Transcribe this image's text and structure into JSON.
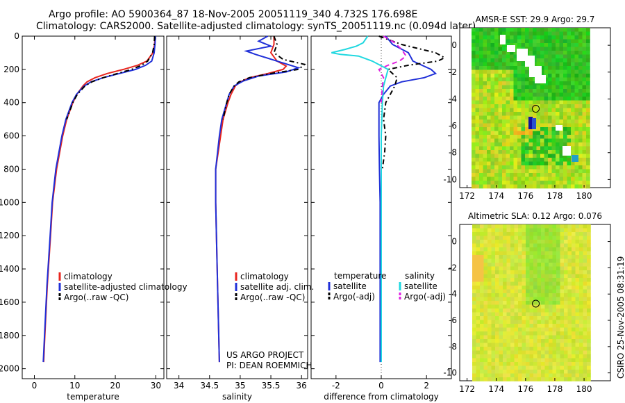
{
  "header": {
    "line1": "Argo profile: AO 5900364_87 18-Nov-2005 20051119_340 4.732S 176.698E",
    "line2": "Climatology: CARS2000. Satellite-adjusted climatology: synTS_20051119.nc (0.094d later)"
  },
  "chart_data": [
    {
      "type": "line",
      "id": "temperature",
      "xlabel": "temperature",
      "xlim": [
        -3,
        32
      ],
      "ylim": [
        2060,
        0
      ],
      "xticks": [
        0,
        10,
        20,
        30
      ],
      "xtick_labels": [
        "0",
        "10",
        "20",
        "30"
      ],
      "yticks": [
        0,
        200,
        400,
        600,
        800,
        1000,
        1200,
        1400,
        1600,
        1800,
        2000
      ],
      "ytick_labels": [
        "0",
        "200",
        "400",
        "600",
        "800",
        "1000",
        "1200",
        "1400",
        "1600",
        "1800",
        "2000"
      ],
      "legend": [
        "climatology",
        "satellite-adjusted climatology",
        "Argo(..raw -QC)"
      ],
      "series": [
        {
          "name": "climatology",
          "color": "#e8261f",
          "dash": "",
          "depth": [
            0,
            50,
            100,
            150,
            175,
            200,
            225,
            250,
            275,
            300,
            350,
            400,
            500,
            600,
            800,
            1000,
            1200,
            1500,
            1800,
            1960
          ],
          "values": [
            29.8,
            29.7,
            29.3,
            27.8,
            25.5,
            22,
            18,
            15,
            13,
            12,
            10.5,
            9.5,
            8,
            7,
            5.5,
            4.5,
            4,
            3.2,
            2.6,
            2.3
          ]
        },
        {
          "name": "satellite-adjusted climatology",
          "color": "#2030d8",
          "dash": "",
          "depth": [
            0,
            50,
            100,
            150,
            175,
            200,
            225,
            250,
            275,
            300,
            350,
            400,
            500,
            600,
            800,
            1000,
            1200,
            1500,
            1800,
            1960
          ],
          "values": [
            29.9,
            29.8,
            29.6,
            29,
            27.5,
            25,
            21,
            17,
            14,
            12.3,
            10.4,
            9.3,
            7.8,
            6.8,
            5.3,
            4.4,
            3.9,
            3.1,
            2.5,
            2.2
          ]
        },
        {
          "name": "Argo(..raw -QC)",
          "color": "#000000",
          "dash": "7,4,2,4",
          "depth": [
            0,
            50,
            100,
            150,
            175,
            200,
            225,
            250,
            275,
            300,
            350,
            400,
            500
          ],
          "values": [
            29.7,
            29.6,
            29.2,
            28,
            26.5,
            24,
            20.5,
            17,
            14.2,
            12.5,
            10.6,
            9.5,
            8
          ]
        }
      ]
    },
    {
      "type": "line",
      "id": "salinity",
      "xlabel": "salinity",
      "xlim": [
        33.8,
        36.1
      ],
      "ylim": [
        2060,
        0
      ],
      "xticks": [
        34,
        34.5,
        35,
        35.5,
        36
      ],
      "xtick_labels": [
        "34",
        "34.5",
        "35",
        "35.5",
        "36"
      ],
      "legend": [
        "climatology",
        "satellite adj. clim.",
        "Argo(..raw -QC)"
      ],
      "series": [
        {
          "name": "climatology",
          "color": "#e8261f",
          "dash": "",
          "depth": [
            0,
            50,
            100,
            150,
            180,
            200,
            225,
            250,
            275,
            300,
            350,
            400,
            500,
            600,
            800,
            1000,
            1500,
            1960
          ],
          "values": [
            35.55,
            35.55,
            35.5,
            35.6,
            35.75,
            35.7,
            35.45,
            35.15,
            35.0,
            34.92,
            34.85,
            34.8,
            34.72,
            34.68,
            34.6,
            34.6,
            34.63,
            34.66
          ]
        },
        {
          "name": "satellite adj. clim.",
          "color": "#2030d8",
          "dash": "",
          "depth": [
            0,
            30,
            60,
            90,
            110,
            150,
            190,
            215,
            240,
            270,
            300,
            350,
            400,
            500,
            600,
            800,
            1000,
            1500,
            1960
          ],
          "values": [
            35.45,
            35.3,
            35.5,
            35.1,
            35.25,
            35.6,
            35.95,
            35.75,
            35.3,
            35.05,
            34.9,
            34.82,
            34.78,
            34.7,
            34.66,
            34.6,
            34.6,
            34.63,
            34.66
          ]
        },
        {
          "name": "Argo(..raw -QC)",
          "color": "#000000",
          "dash": "7,4,2,4",
          "depth": [
            0,
            50,
            100,
            140,
            170,
            200,
            225,
            250,
            275,
            300,
            350,
            400,
            500
          ],
          "values": [
            35.55,
            35.6,
            35.55,
            35.7,
            36.05,
            35.95,
            35.5,
            35.15,
            34.98,
            34.9,
            34.82,
            34.78,
            34.72
          ]
        }
      ],
      "annotation": [
        "US ARGO PROJECT",
        "PI: DEAN ROEMMICH"
      ]
    },
    {
      "type": "line",
      "id": "difference",
      "xlabel": "difference from climatology",
      "xlim": [
        -3.1,
        3.1
      ],
      "ylim": [
        2060,
        0
      ],
      "xticks": [
        -2,
        0,
        2
      ],
      "xtick_labels": [
        "-2",
        "0",
        "2"
      ],
      "legend_headers": [
        "temperature",
        "salinity"
      ],
      "legend_left": [
        "satellite",
        "Argo(-adj)"
      ],
      "legend_right": [
        "satellite",
        "Argo(-adj)"
      ],
      "series": [
        {
          "name": "temperature satellite",
          "color": "#2030d8",
          "dash": "",
          "depth": [
            0,
            50,
            100,
            150,
            175,
            200,
            225,
            250,
            275,
            300,
            350,
            400,
            450,
            500,
            600,
            800,
            1000,
            1500,
            1960
          ],
          "values": [
            0.2,
            0.5,
            1.2,
            1.4,
            1.8,
            2.2,
            2.4,
            1.9,
            0.9,
            0.4,
            0.1,
            -0.1,
            -0.1,
            -0.1,
            -0.1,
            -0.08,
            -0.05,
            -0.05,
            -0.05
          ]
        },
        {
          "name": "temperature Argo(-adj)",
          "color": "#000000",
          "dash": "7,4,2,4",
          "depth": [
            0,
            50,
            100,
            130,
            150,
            175,
            200,
            250,
            300,
            350,
            400,
            500,
            600,
            700,
            800
          ],
          "values": [
            -0.1,
            0.9,
            2.4,
            2.8,
            2.5,
            1.2,
            0.3,
            0.7,
            0.6,
            0.4,
            0.2,
            0.1,
            0.2,
            0.15,
            0.05
          ]
        },
        {
          "name": "salinity satellite",
          "color": "#20d8e0",
          "dash": "",
          "depth": [
            0,
            40,
            60,
            80,
            100,
            110,
            120,
            150,
            200,
            300,
            400,
            600,
            1000,
            1500,
            1960
          ],
          "values": [
            -0.6,
            -0.8,
            -1.1,
            -1.6,
            -2.2,
            -1.8,
            -1.0,
            -0.4,
            0.3,
            0.1,
            0.05,
            0.0,
            0.0,
            0.0,
            0.0
          ]
        },
        {
          "name": "salinity Argo(-adj)",
          "color": "#e020e0",
          "dash": "7,5",
          "depth": [
            0,
            40,
            80,
            120,
            150,
            175,
            200,
            250,
            300,
            400
          ],
          "values": [
            0.1,
            0.6,
            0.9,
            1.1,
            0.8,
            0.3,
            -0.1,
            0.1,
            0.05,
            0.0
          ]
        }
      ]
    },
    {
      "type": "heatmap",
      "id": "sst-map",
      "title": "AMSR-E SST: 29.9 Argo: 29.7",
      "xlim": [
        171.5,
        181.8
      ],
      "ylim": [
        -10.6,
        1.3
      ],
      "xticks": [
        172,
        174,
        176,
        178,
        180
      ],
      "xtick_labels": [
        "172",
        "174",
        "176",
        "178",
        "180"
      ],
      "yticks": [
        0,
        -2,
        -4,
        -6,
        -8,
        -10
      ],
      "ytick_labels": [
        "0",
        "-2",
        "-4",
        "-6",
        "-8",
        "-10"
      ],
      "marker": {
        "lon": 176.7,
        "lat": -4.73
      }
    },
    {
      "type": "heatmap",
      "id": "sla-map",
      "title": "Altimetric SLA: 0.12 Argo: 0.076",
      "xlim": [
        171.5,
        181.8
      ],
      "ylim": [
        -10.6,
        1.3
      ],
      "xticks": [
        172,
        174,
        176,
        178,
        180
      ],
      "xtick_labels": [
        "172",
        "174",
        "176",
        "178",
        "180"
      ],
      "yticks": [
        0,
        -2,
        -4,
        -6,
        -8,
        -10
      ],
      "ytick_labels": [
        "0",
        "-2",
        "-4",
        "-6",
        "-8",
        "-10"
      ],
      "marker": {
        "lon": 176.7,
        "lat": -4.73
      }
    }
  ],
  "footer": {
    "credit": "CSIRO 25-Nov-2005 08:31:19"
  }
}
